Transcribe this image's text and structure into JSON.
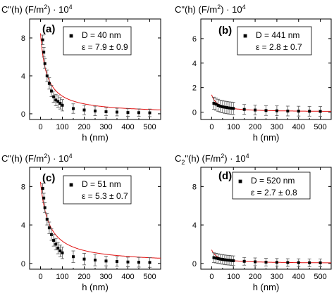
{
  "chart_data": [
    {
      "type": "scatter",
      "panel_label": "(a)",
      "ylabel": "C\"(h) (F/m",
      "ylabel_sup": "2",
      "ylabel_suffix": ") · 10",
      "ylabel_exp": "4",
      "xlabel": "h (nm)",
      "xlim": [
        -50,
        550
      ],
      "ylim": [
        -0.6,
        10.0
      ],
      "xticks": [
        0,
        100,
        200,
        300,
        400,
        500
      ],
      "yticks": [
        0,
        4,
        8
      ],
      "legend": {
        "marker": "■",
        "line1": "D = 40 nm",
        "line2": "ε = 7.9 ± 0.9",
        "placement": "top-right"
      },
      "fit": {
        "A": 8.48,
        "c": 28.15
      },
      "series": [
        {
          "name": "data",
          "x": [
            10,
            15,
            20,
            30,
            40,
            50,
            60,
            70,
            80,
            90,
            100,
            150,
            200,
            250,
            300,
            350,
            400,
            450,
            500
          ],
          "y": [
            7.8,
            6.5,
            5.3,
            4.0,
            3.2,
            2.4,
            1.8,
            1.45,
            1.3,
            1.1,
            0.9,
            0.55,
            0.4,
            0.3,
            0.22,
            0.18,
            0.13,
            0.12,
            0.1
          ],
          "err": [
            0.5,
            0.5,
            0.5,
            0.6,
            0.6,
            0.6,
            0.6,
            0.6,
            0.6,
            0.6,
            0.6,
            0.5,
            0.5,
            0.5,
            0.4,
            0.4,
            0.4,
            0.4,
            0.4
          ]
        }
      ]
    },
    {
      "type": "scatter",
      "panel_label": "(b)",
      "ylabel": "C\"(h) (F/m",
      "ylabel_sup": "2",
      "ylabel_suffix": ") · 10",
      "ylabel_exp": "4",
      "xlabel": "h (nm)",
      "xlim": [
        -50,
        550
      ],
      "ylim": [
        -0.6,
        7.6
      ],
      "xticks": [
        0,
        100,
        200,
        300,
        400,
        500
      ],
      "yticks": [
        0,
        2,
        4,
        6
      ],
      "legend": {
        "marker": "■",
        "line1": "D = 441 nm",
        "line2": "ε = 2.8 ± 0.7",
        "placement": "top-right"
      },
      "fit": {
        "A": 1.42,
        "c": 25.66
      },
      "series": [
        {
          "name": "data",
          "x": [
            10,
            20,
            30,
            40,
            50,
            60,
            70,
            80,
            90,
            100,
            150,
            200,
            250,
            300,
            350,
            400,
            450,
            500
          ],
          "y": [
            0.72,
            0.65,
            0.55,
            0.48,
            0.44,
            0.4,
            0.37,
            0.34,
            0.32,
            0.3,
            0.22,
            0.17,
            0.13,
            0.11,
            0.09,
            0.08,
            0.07,
            0.06
          ],
          "err": [
            0.5,
            0.5,
            0.5,
            0.5,
            0.5,
            0.5,
            0.5,
            0.5,
            0.5,
            0.5,
            0.4,
            0.4,
            0.4,
            0.4,
            0.4,
            0.4,
            0.4,
            0.4
          ]
        }
      ]
    },
    {
      "type": "scatter",
      "panel_label": "(c)",
      "ylabel": "C\"(h) (F/m",
      "ylabel_sup": "2",
      "ylabel_suffix": ") · 10",
      "ylabel_exp": "4",
      "xlabel": "h (nm)",
      "xlim": [
        -50,
        550
      ],
      "ylim": [
        -0.6,
        10.0
      ],
      "xticks": [
        0,
        100,
        200,
        300,
        400,
        500
      ],
      "yticks": [
        0,
        4,
        8
      ],
      "legend": {
        "marker": "■",
        "line1": "D = 51 nm",
        "line2": "ε = 5.3 ± 0.7",
        "placement": "top-right"
      },
      "fit": {
        "A": 8.48,
        "c": 37.6
      },
      "series": [
        {
          "name": "data",
          "x": [
            10,
            15,
            20,
            30,
            40,
            50,
            60,
            70,
            80,
            90,
            100,
            150,
            200,
            250,
            300,
            350,
            400,
            450,
            500
          ],
          "y": [
            7.8,
            6.8,
            5.8,
            4.6,
            3.7,
            3.0,
            2.4,
            2.0,
            1.6,
            1.3,
            1.1,
            0.7,
            0.45,
            0.35,
            0.25,
            0.2,
            0.15,
            0.12,
            0.1
          ],
          "err": [
            0.5,
            0.5,
            0.5,
            0.6,
            0.6,
            0.6,
            0.6,
            0.6,
            0.6,
            0.6,
            0.6,
            0.6,
            0.6,
            0.6,
            0.5,
            0.5,
            0.5,
            0.5,
            0.5
          ]
        }
      ]
    },
    {
      "type": "scatter",
      "panel_label": "(d)",
      "ylabel": "C",
      "ylabel_sub": "2",
      "ylabel_after_sub": "\"(h) (F/m",
      "ylabel_sup": "2",
      "ylabel_suffix": ") · 10",
      "ylabel_exp": "4",
      "xlabel": "h (nm)",
      "xlim": [
        -50,
        550
      ],
      "ylim": [
        -0.6,
        10.0
      ],
      "xticks": [
        0,
        100,
        200,
        300,
        400,
        500
      ],
      "yticks": [
        0,
        4,
        8
      ],
      "legend": {
        "marker": "■",
        "line1": "D = 520 nm",
        "line2": "ε = 2.7 ± 0.8",
        "placement": "top-right"
      },
      "fit": {
        "A": 1.42,
        "c": 25.66
      },
      "series": [
        {
          "name": "data",
          "x": [
            10,
            20,
            30,
            40,
            50,
            60,
            70,
            80,
            90,
            100,
            150,
            200,
            250,
            300,
            350,
            400,
            450,
            500
          ],
          "y": [
            0.6,
            0.55,
            0.5,
            0.45,
            0.42,
            0.38,
            0.35,
            0.33,
            0.3,
            0.28,
            0.22,
            0.17,
            0.13,
            0.11,
            0.09,
            0.08,
            0.07,
            0.06
          ],
          "err": [
            0.5,
            0.5,
            0.5,
            0.5,
            0.5,
            0.5,
            0.5,
            0.5,
            0.5,
            0.5,
            0.4,
            0.4,
            0.4,
            0.4,
            0.4,
            0.4,
            0.4,
            0.4
          ]
        }
      ]
    }
  ],
  "style": {
    "marker_color": "#000000",
    "fit_color": "#e01010",
    "error_color": "#555555"
  }
}
